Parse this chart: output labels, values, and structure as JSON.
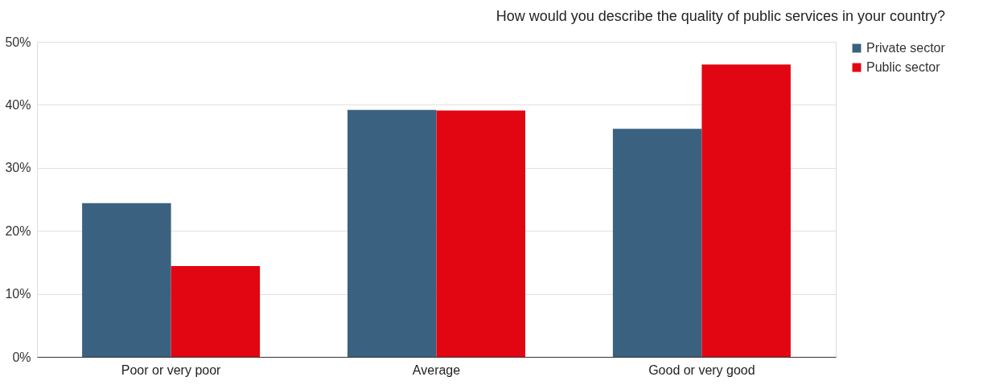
{
  "chart_data": {
    "type": "bar",
    "title": "How would you describe the quality of public services in your country?",
    "categories": [
      "Poor or very poor",
      "Average",
      "Good or very good"
    ],
    "series": [
      {
        "name": "Private sector",
        "color": "#3a6280",
        "values": [
          24.4,
          39.2,
          36.2
        ]
      },
      {
        "name": "Public sector",
        "color": "#e20613",
        "values": [
          14.4,
          39.1,
          46.4
        ]
      }
    ],
    "ylim": [
      0,
      50
    ],
    "yticks": [
      {
        "value": 0,
        "label": "0%"
      },
      {
        "value": 10,
        "label": "10%"
      },
      {
        "value": 20,
        "label": "20%"
      },
      {
        "value": 30,
        "label": "30%"
      },
      {
        "value": 40,
        "label": "40%"
      },
      {
        "value": 50,
        "label": "50%"
      }
    ],
    "grid": "y",
    "legend": "top right"
  }
}
